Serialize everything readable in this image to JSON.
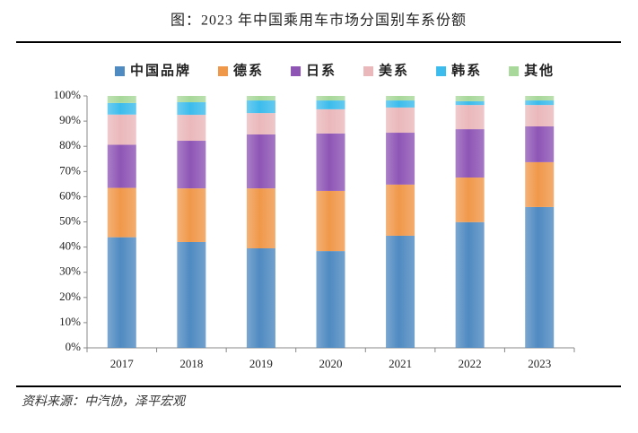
{
  "chart_data": {
    "type": "stacked_bar",
    "title": "图：2023 年中国乘用车市场分国别车系份额",
    "source": "资料来源：中汽协，泽平宏观",
    "categories": [
      "2017",
      "2018",
      "2019",
      "2020",
      "2021",
      "2022",
      "2023"
    ],
    "series": [
      {
        "name": "中国品牌",
        "color": "#4f8ac1",
        "values": [
          43.9,
          42.0,
          39.5,
          38.4,
          44.5,
          49.9,
          55.9
        ]
      },
      {
        "name": "德系",
        "color": "#f0984a",
        "values": [
          19.6,
          21.3,
          23.8,
          23.9,
          20.3,
          17.7,
          17.8
        ]
      },
      {
        "name": "日系",
        "color": "#8e55b5",
        "values": [
          17.1,
          18.9,
          21.4,
          22.8,
          20.6,
          19.2,
          14.2
        ]
      },
      {
        "name": "美系",
        "color": "#eab8bb",
        "values": [
          12.0,
          10.3,
          8.5,
          9.6,
          10.0,
          9.6,
          8.5
        ]
      },
      {
        "name": "韩系",
        "color": "#3cbcec",
        "values": [
          4.6,
          5.0,
          5.0,
          3.5,
          2.8,
          1.5,
          1.8
        ]
      },
      {
        "name": "其他",
        "color": "#a8d89a",
        "values": [
          2.8,
          2.5,
          1.8,
          1.8,
          1.8,
          2.1,
          1.8
        ]
      }
    ],
    "ylim": [
      0,
      100
    ],
    "yticks": [
      {
        "value": 0,
        "label": "0%"
      },
      {
        "value": 10,
        "label": "10%"
      },
      {
        "value": 20,
        "label": "20%"
      },
      {
        "value": 30,
        "label": "30%"
      },
      {
        "value": 40,
        "label": "40%"
      },
      {
        "value": 50,
        "label": "50%"
      },
      {
        "value": 60,
        "label": "60%"
      },
      {
        "value": 70,
        "label": "70%"
      },
      {
        "value": 80,
        "label": "80%"
      },
      {
        "value": 90,
        "label": "90%"
      },
      {
        "value": 100,
        "label": "100%"
      }
    ],
    "grid": false
  }
}
